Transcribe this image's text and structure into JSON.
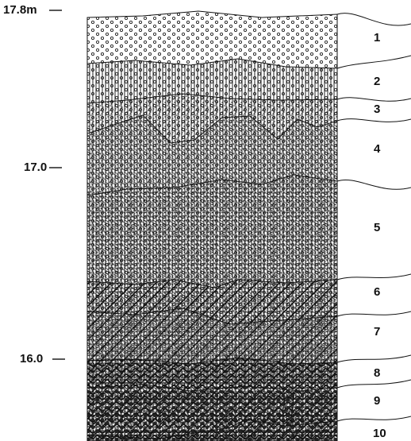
{
  "depth_labels": [
    "17.8m",
    "17.0",
    "16.0"
  ],
  "layers": [
    {
      "label": "1"
    },
    {
      "label": "2"
    },
    {
      "label": "3"
    },
    {
      "label": "4"
    },
    {
      "label": "5"
    },
    {
      "label": "6"
    },
    {
      "label": "7"
    },
    {
      "label": "8"
    },
    {
      "label": "9"
    },
    {
      "label": "10"
    }
  ]
}
